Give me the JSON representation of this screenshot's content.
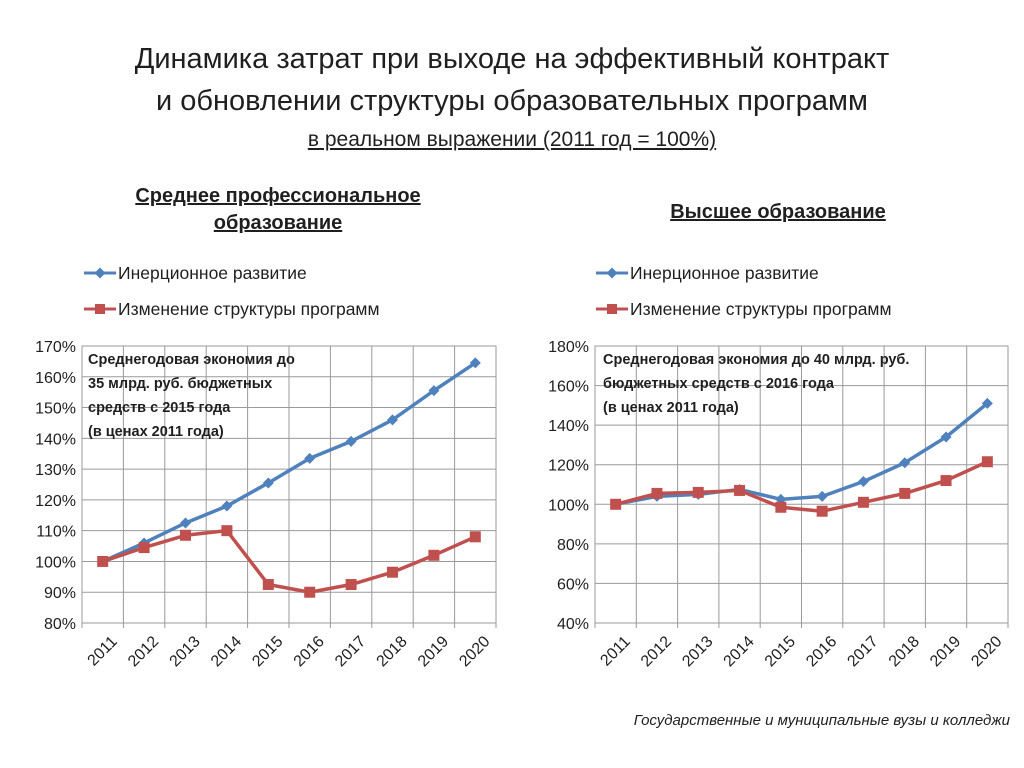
{
  "page": {
    "title_line1": "Динамика затрат при выходе на эффективный контракт",
    "title_line2": "и обновлении структуры образовательных программ",
    "subtitle": "в реальном выражении (2011 год = 100%)",
    "footer": "Государственные и муниципальные вузы и колледжи"
  },
  "charts": [
    {
      "title": "Среднее профессиональное образование",
      "legend": [
        "Инерционное развитие",
        "Изменение структуры программ"
      ],
      "note_lines": [
        "Среднегодовая экономия до",
        "35 млрд. руб. бюджетных",
        "средств с 2015 года",
        "(в ценах 2011 года)"
      ]
    },
    {
      "title": "Высшее образование",
      "legend": [
        "Инерционное развитие",
        "Изменение структуры программ"
      ],
      "note_lines": [
        "Среднегодовая экономия до 40 млрд. руб.",
        "бюджетных средств с 2016 года",
        "(в ценах 2011 года)"
      ]
    }
  ],
  "chart_data": [
    {
      "type": "line",
      "title": "Среднее профессиональное образование",
      "categories": [
        "2011",
        "2012",
        "2013",
        "2014",
        "2015",
        "2016",
        "2017",
        "2018",
        "2019",
        "2020"
      ],
      "series": [
        {
          "name": "Инерционное развитие",
          "color": "#4F81BD",
          "marker": "diamond",
          "values": [
            100,
            106,
            112.5,
            118,
            125.5,
            133.5,
            139,
            146,
            155.5,
            164.5
          ]
        },
        {
          "name": "Изменение структуры программ",
          "color": "#C0504D",
          "marker": "square",
          "values": [
            100,
            104.5,
            108.5,
            110,
            92.5,
            90,
            92.5,
            96.5,
            102,
            108
          ]
        }
      ],
      "ylim": [
        80,
        170
      ],
      "yticks": [
        80,
        90,
        100,
        110,
        120,
        130,
        140,
        150,
        160,
        170
      ],
      "ytick_labels": [
        "80%",
        "90%",
        "100%",
        "110%",
        "120%",
        "130%",
        "140%",
        "150%",
        "160%",
        "170%"
      ],
      "grid": true,
      "legend_position": "top-left"
    },
    {
      "type": "line",
      "title": "Высшее образование",
      "categories": [
        "2011",
        "2012",
        "2013",
        "2014",
        "2015",
        "2016",
        "2017",
        "2018",
        "2019",
        "2020"
      ],
      "series": [
        {
          "name": "Инерционное развитие",
          "color": "#4F81BD",
          "marker": "diamond",
          "values": [
            100,
            104,
            105,
            107.5,
            102.5,
            104,
            111.5,
            121,
            134,
            151
          ]
        },
        {
          "name": "Изменение структуры программ",
          "color": "#C0504D",
          "marker": "square",
          "values": [
            100,
            105.5,
            106,
            107,
            98.5,
            96.5,
            101,
            105.5,
            112,
            121.5
          ]
        }
      ],
      "ylim": [
        40,
        180
      ],
      "yticks": [
        40,
        60,
        80,
        100,
        120,
        140,
        160,
        180
      ],
      "ytick_labels": [
        "40%",
        "60%",
        "80%",
        "100%",
        "120%",
        "140%",
        "160%",
        "180%"
      ],
      "grid": true,
      "legend_position": "top-left"
    }
  ]
}
